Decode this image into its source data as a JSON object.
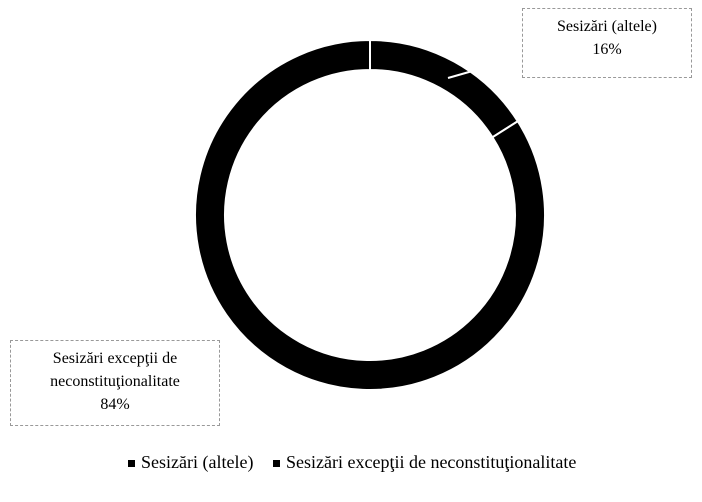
{
  "chart_data": {
    "type": "donut",
    "categories": [
      "Sesizări (altele)",
      "Sesizări excepţii de neconstituţionalitate"
    ],
    "values": [
      16,
      84
    ],
    "value_labels": [
      "16%",
      "84%"
    ],
    "colors": [
      "#000000",
      "#000000"
    ],
    "legend": "bottom"
  }
}
